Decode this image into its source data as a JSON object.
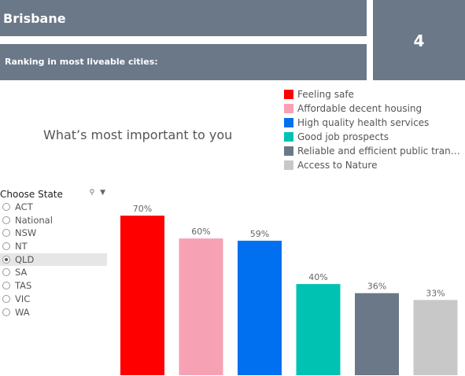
{
  "header": {
    "city": "Brisbane",
    "ranking_label": "Ranking in most liveable cities:",
    "ranking_value": "4"
  },
  "important_title": "What’s most important to you",
  "legend": [
    {
      "label": "Feeling safe",
      "color": "#ff0000"
    },
    {
      "label": "Affordable decent housing",
      "color": "#f7a1b5"
    },
    {
      "label": "High quality health services",
      "color": "#0070f0"
    },
    {
      "label": "Good job prospects",
      "color": "#00c2b2"
    },
    {
      "label": "Reliable and efficient public transp...",
      "color": "#6b7888"
    },
    {
      "label": "Access to Nature",
      "color": "#c8c8c8"
    }
  ],
  "filter": {
    "title": "Choose State",
    "tools_icons": [
      "search-icon",
      "dropdown-arrow-icon"
    ],
    "options": [
      "ACT",
      "National",
      "NSW",
      "NT",
      "QLD",
      "SA",
      "TAS",
      "VIC",
      "WA"
    ],
    "selected": "QLD"
  },
  "chart_data": {
    "type": "bar",
    "categories": [
      "Feeling safe",
      "Affordable decent housing",
      "High quality health services",
      "Good job prospects",
      "Reliable and efficient public transp...",
      "Access to Nature"
    ],
    "values": [
      70,
      60,
      59,
      40,
      36,
      33
    ],
    "labels": [
      "70%",
      "60%",
      "59%",
      "40%",
      "36%",
      "33%"
    ],
    "colors": [
      "#ff0000",
      "#f7a1b5",
      "#0070f0",
      "#00c2b2",
      "#6b7888",
      "#c8c8c8"
    ],
    "ylim": [
      0,
      78
    ],
    "grid": false,
    "legend_position": "top-right"
  }
}
